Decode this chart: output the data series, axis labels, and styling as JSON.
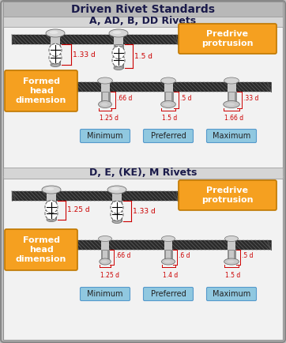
{
  "title": "Driven Rivet Standards",
  "section1_title": "A, AD, B, DD Rivets",
  "section2_title": "D, E, (KE), M Rivets",
  "predrive_label": "Predrive\nprotrusion",
  "formed_label": "Formed\nhead\ndimension",
  "labels_min_pref_max": [
    "Minimum",
    "Preferred",
    "Maximum"
  ],
  "sec1_predrive_dims": [
    "1.33 d",
    "1.5 d"
  ],
  "sec1_formed_dims_top": [
    ".66 d",
    ".5 d",
    ".33 d"
  ],
  "sec1_formed_dims_bot": [
    "1.25 d",
    "1.5 d",
    "1.66 d"
  ],
  "sec2_predrive_dims": [
    "1.25 d",
    "1.33 d"
  ],
  "sec2_formed_dims_top": [
    ".66 d",
    ".6 d",
    ".5 d"
  ],
  "sec2_formed_dims_bot": [
    "1.25 d",
    "1.4 d",
    "1.5 d"
  ],
  "bg_outer": "#c0c0c0",
  "bg_section1": "#efefef",
  "bg_section2": "#efefef",
  "bg_title_main": "#a8a8a8",
  "bg_title_sub": "#d4d4d4",
  "orange_color": "#f5a020",
  "blue_color": "#90c8e0",
  "red_dim": "#cc0000",
  "plate_color": "#303030",
  "plate_hatch": "#555555",
  "rivet_light": "#d8d8d8",
  "rivet_mid": "#a0a0a0",
  "rivet_dark": "#606060",
  "rivet_shine": "#f0f0f0",
  "section_border": "#909090"
}
